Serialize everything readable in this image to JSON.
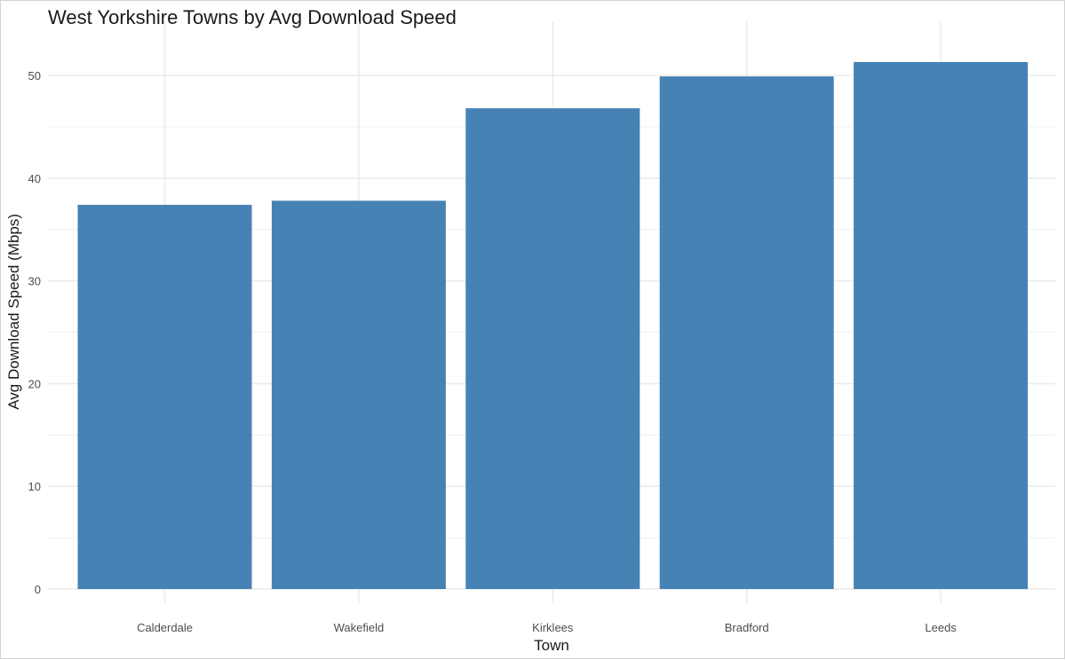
{
  "chart_data": {
    "type": "bar",
    "title": "West Yorkshire Towns by Avg Download Speed",
    "xlabel": "Town",
    "ylabel": "Avg Download Speed (Mbps)",
    "categories": [
      "Calderdale",
      "Wakefield",
      "Kirklees",
      "Bradford",
      "Leeds"
    ],
    "values": [
      37.4,
      37.8,
      46.8,
      49.9,
      51.3
    ],
    "ylim": [
      0,
      54
    ],
    "yticks": [
      0,
      10,
      20,
      30,
      40,
      50
    ],
    "grid": true,
    "bar_color": "#4682B4",
    "grid_color": "#ebebeb"
  }
}
